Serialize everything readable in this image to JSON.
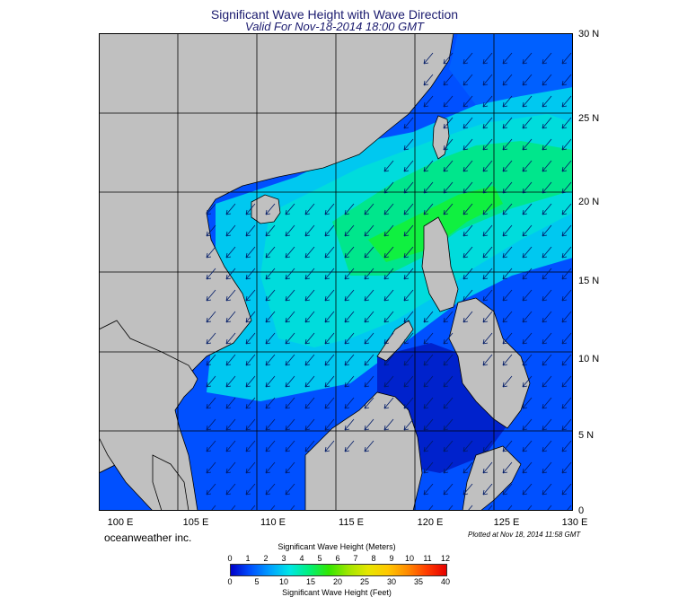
{
  "title": "Significant Wave Height with Wave Direction",
  "subtitle": "Valid For Nov-18-2014 18:00 GMT",
  "latitude_labels": [
    "30 N",
    "25 N",
    "20 N",
    "15 N",
    "10 N",
    "5 N",
    "0"
  ],
  "longitude_labels": [
    "100 E",
    "105 E",
    "110 E",
    "115 E",
    "120 E",
    "125 E",
    "130 E"
  ],
  "brand": "oceanweather inc.",
  "plotted_note": "Plotted at Nov 18, 2014 11:58 GMT",
  "colorbar": {
    "meters_title": "Significant Wave Height (Meters)",
    "feet_title": "Significant Wave Height (Feet)",
    "meters_ticks": [
      "0",
      "1",
      "2",
      "3",
      "4",
      "5",
      "6",
      "7",
      "8",
      "9",
      "10",
      "11",
      "12"
    ],
    "feet_ticks": [
      "0",
      "5",
      "10",
      "15",
      "20",
      "25",
      "30",
      "35",
      "40"
    ],
    "colors": [
      "#0000c8",
      "#0050ff",
      "#00a0ff",
      "#00e6e6",
      "#00f07a",
      "#32e600",
      "#a0e600",
      "#e6e600",
      "#ffc800",
      "#ff8c00",
      "#ff3c00",
      "#e60000"
    ]
  },
  "colors": {
    "land": "#c0c0c0",
    "deep_blue": "#0022cc",
    "blue": "#0055ff",
    "cyan": "#00c8f0",
    "green": "#00e68c",
    "arrow": "#001a66"
  }
}
